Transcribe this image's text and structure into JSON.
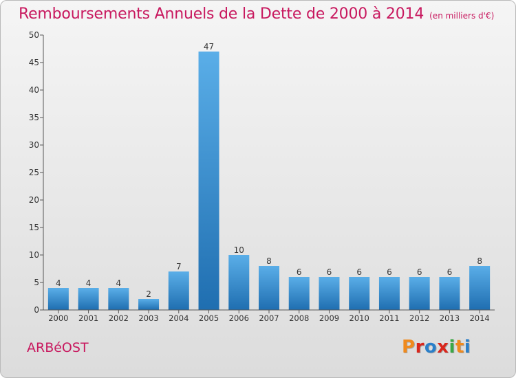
{
  "header": {
    "title": "Remboursements Annuels de la Dette de 2000 à 2014",
    "subtitle": "(en milliers d'€)"
  },
  "footer": {
    "place": "ARBéOST",
    "brand": "Proxiti",
    "brand_colors": [
      "#f08a1d",
      "#d9261c",
      "#2a7fc9",
      "#d9261c",
      "#3aa845",
      "#f08a1d",
      "#2a7fc9"
    ]
  },
  "colors": {
    "accent": "#c8195f",
    "bar_light": "#5aaee8",
    "bar_dark": "#1f6eb0",
    "axis": "#555555",
    "label": "#333333"
  },
  "chart_data": {
    "type": "bar",
    "title": "Remboursements Annuels de la Dette de 2000 à 2014",
    "subtitle": "(en milliers d'€)",
    "categories": [
      "2000",
      "2001",
      "2002",
      "2003",
      "2004",
      "2005",
      "2006",
      "2007",
      "2008",
      "2009",
      "2010",
      "2011",
      "2012",
      "2013",
      "2014"
    ],
    "values": [
      4,
      4,
      4,
      2,
      7,
      47,
      10,
      8,
      6,
      6,
      6,
      6,
      6,
      6,
      8
    ],
    "ylim": [
      0,
      50
    ],
    "yticks": [
      0,
      5,
      10,
      15,
      20,
      25,
      30,
      35,
      40,
      45,
      50
    ],
    "grid": false,
    "data_labels": true
  }
}
